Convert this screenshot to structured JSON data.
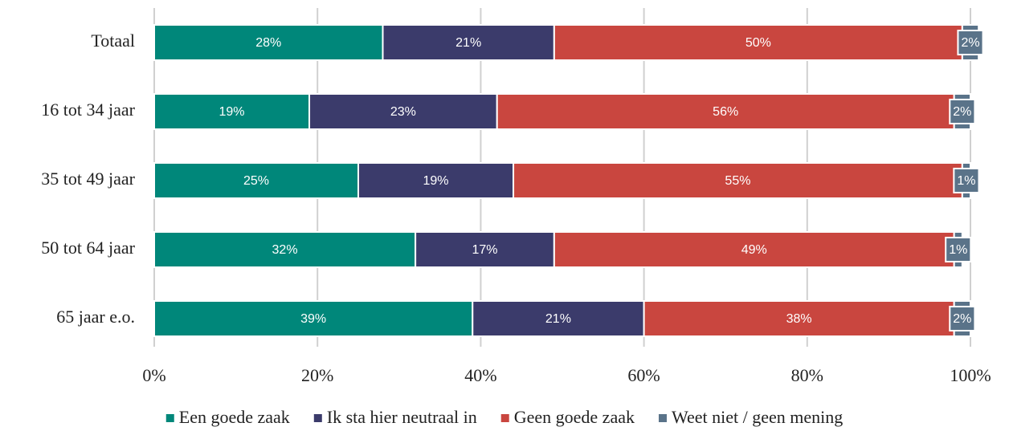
{
  "chart_data": {
    "type": "stacked-barh",
    "categories": [
      "Totaal",
      "16 tot 34 jaar",
      "35 tot 49 jaar",
      "50 tot 64 jaar",
      "65 jaar e.o."
    ],
    "series": [
      {
        "name": "Een goede zaak",
        "color": "#00877a",
        "values": [
          28,
          19,
          25,
          32,
          39
        ],
        "value_labels": [
          "28%",
          "19%",
          "25%",
          "32%",
          "39%"
        ]
      },
      {
        "name": "Ik sta hier neutraal in",
        "color": "#3b3b6b",
        "values": [
          21,
          23,
          19,
          17,
          21
        ],
        "value_labels": [
          "21%",
          "23%",
          "19%",
          "17%",
          "21%"
        ]
      },
      {
        "name": "Geen goede zaak",
        "color": "#c9463f",
        "values": [
          50,
          56,
          55,
          49,
          38
        ],
        "value_labels": [
          "50%",
          "56%",
          "55%",
          "49%",
          "38%"
        ]
      },
      {
        "name": "Weet niet / geen mening",
        "color": "#5a7389",
        "values": [
          2,
          2,
          1,
          1,
          2
        ],
        "value_labels": [
          "2%",
          "2%",
          "1%",
          "1%",
          "2%"
        ]
      }
    ],
    "xlim": [
      0,
      100
    ],
    "xticks": [
      {
        "value": 0,
        "label": "0%"
      },
      {
        "value": 20,
        "label": "20%"
      },
      {
        "value": 40,
        "label": "40%"
      },
      {
        "value": 60,
        "label": "60%"
      },
      {
        "value": 80,
        "label": "80%"
      },
      {
        "value": 100,
        "label": "100%"
      }
    ],
    "grid": true,
    "legend": "bottom"
  }
}
